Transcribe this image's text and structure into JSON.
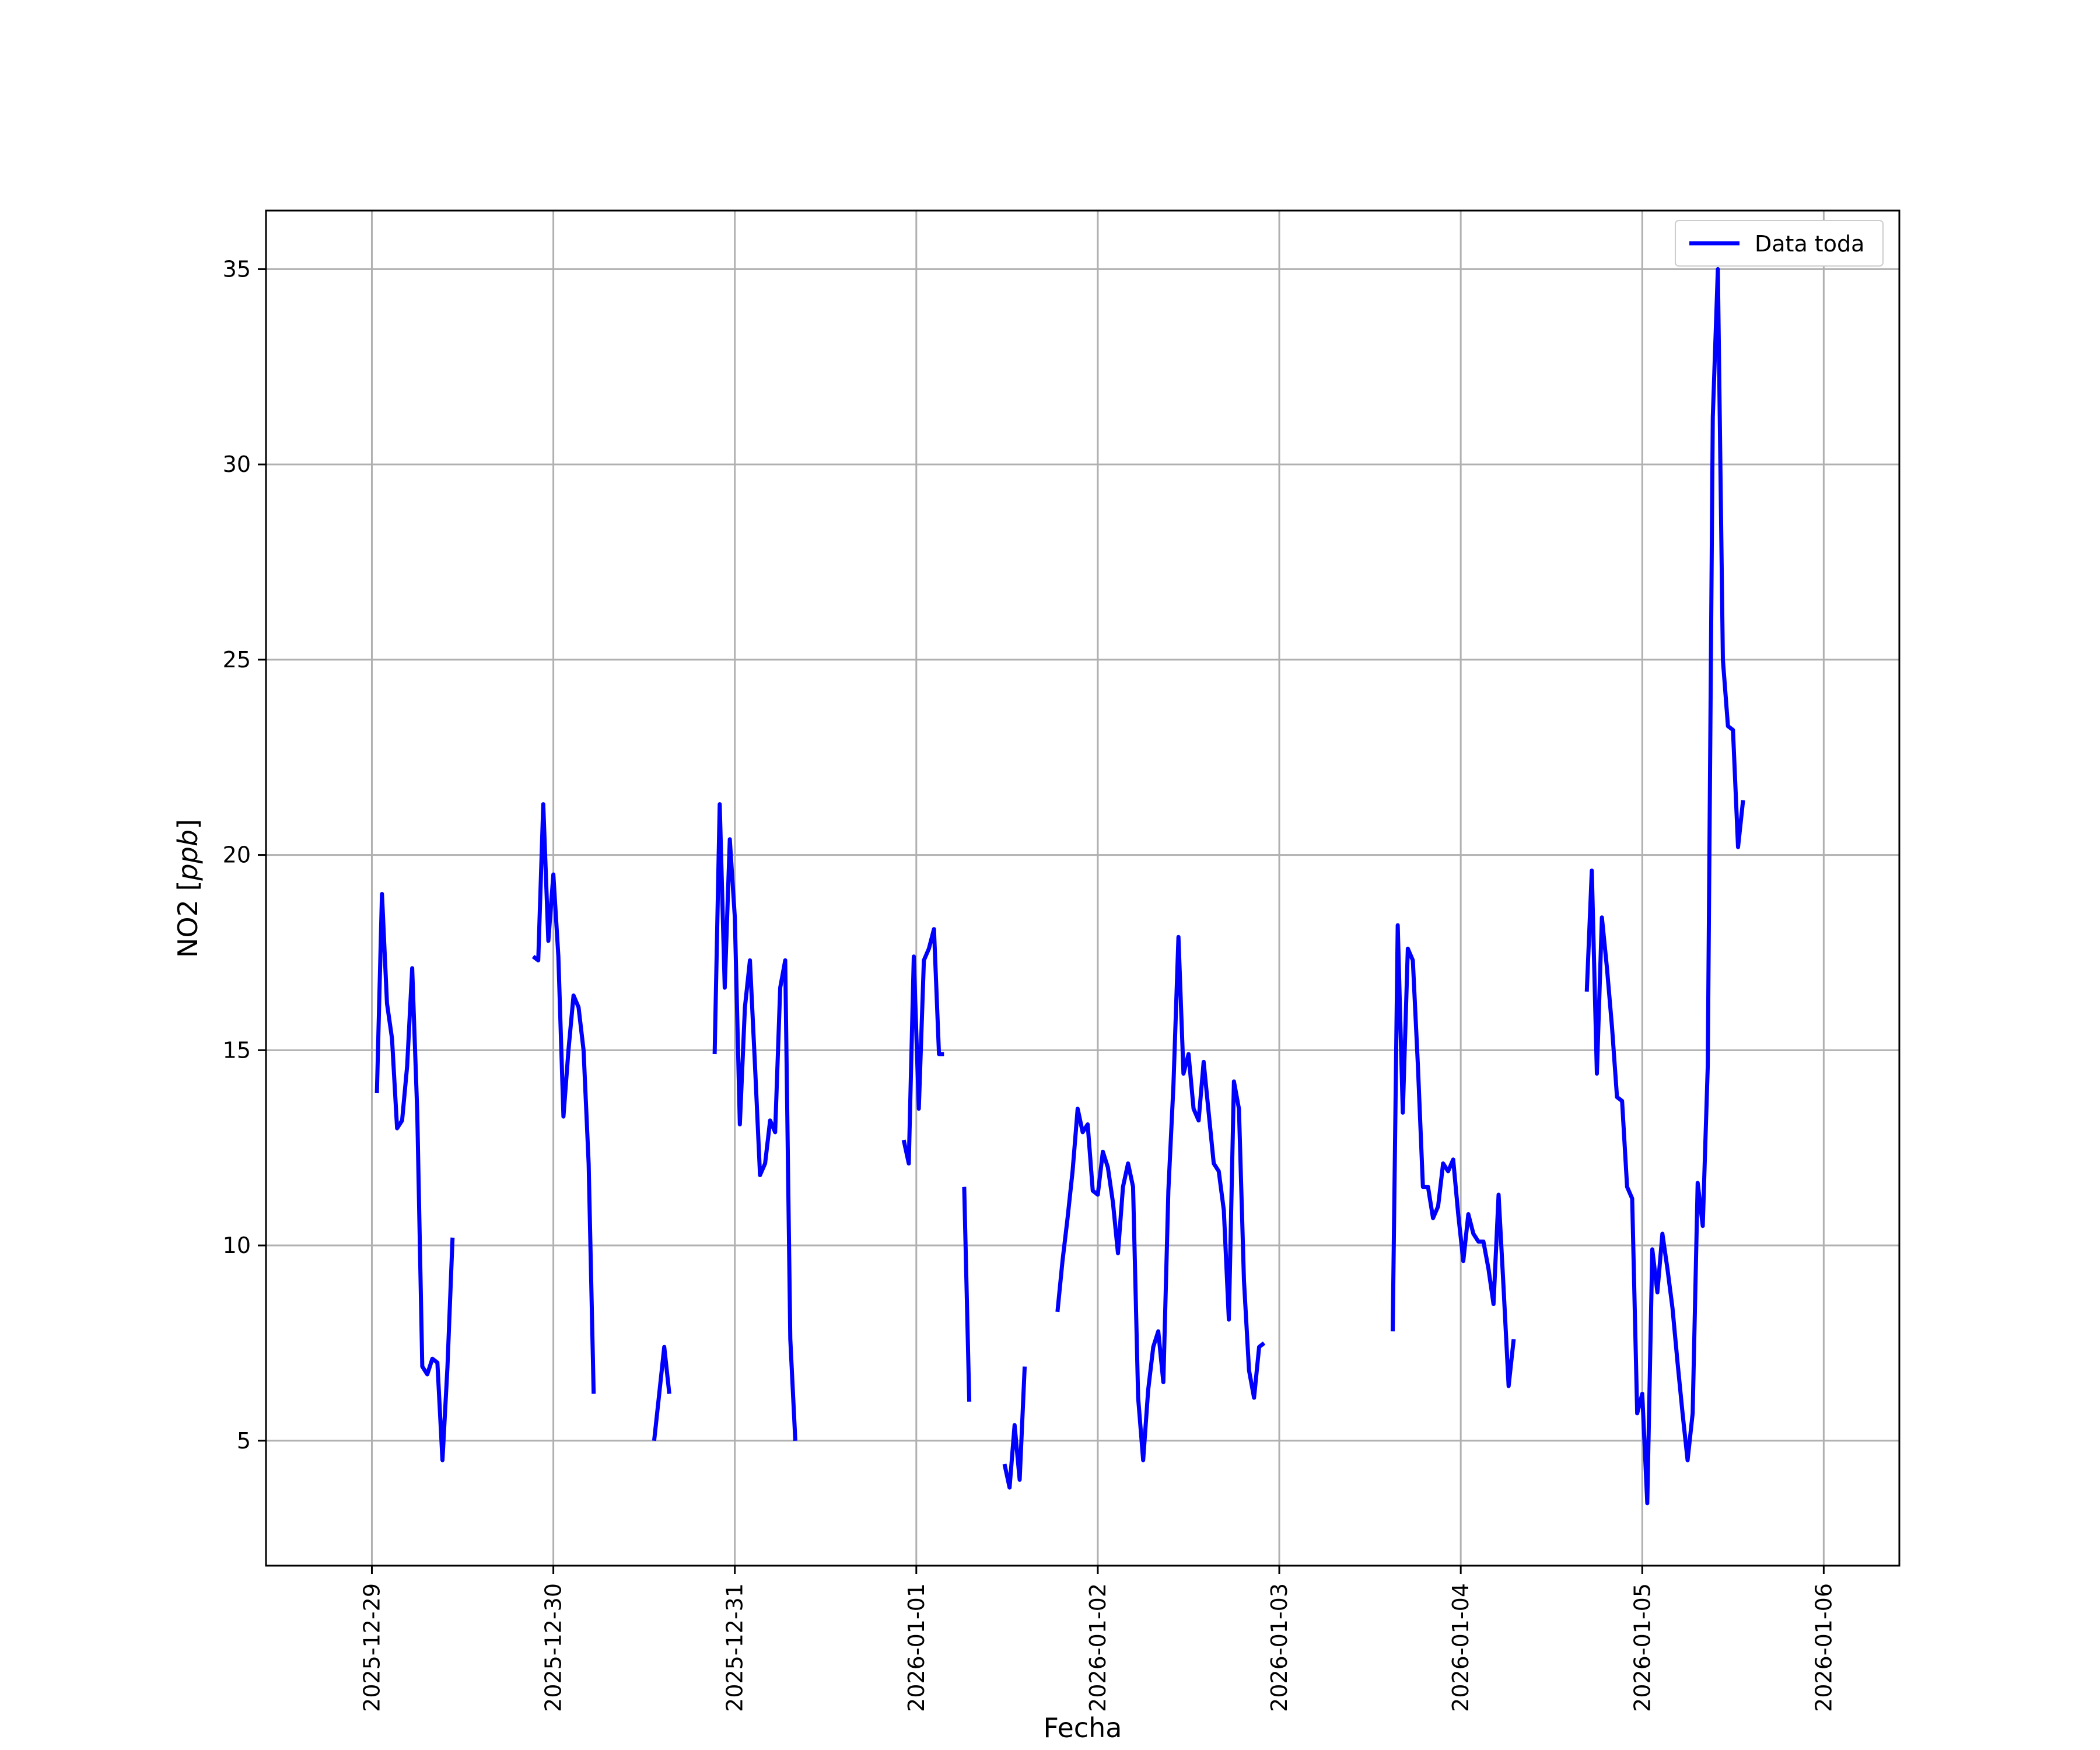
{
  "chart_data": {
    "type": "line",
    "title": "",
    "xlabel": "Fecha",
    "ylabel": "NO2 [ppb]",
    "ylabel_prefix": "NO2 [",
    "ylabel_unit": "ppb",
    "ylabel_suffix": "]",
    "x_axis_type": "datetime",
    "xlim": [
      "2025-12-28T10:00",
      "2026-01-06T10:00"
    ],
    "ylim": [
      1.8,
      36.5
    ],
    "x_ticks": [
      "2025-12-29",
      "2025-12-30",
      "2025-12-31",
      "2026-01-01",
      "2026-01-02",
      "2026-01-03",
      "2026-01-04",
      "2026-01-05",
      "2026-01-06"
    ],
    "y_ticks": [
      5,
      10,
      15,
      20,
      25,
      30,
      35
    ],
    "grid": true,
    "legend": {
      "position": "top-right",
      "entries": [
        "Data toda"
      ]
    },
    "series": [
      {
        "name": "Data toda",
        "color": "#0000ff",
        "segments": [
          [
            [
              "2025-12-29T00:40",
              13.9
            ],
            [
              "2025-12-29T01:20",
              19.0
            ],
            [
              "2025-12-29T02:00",
              16.2
            ],
            [
              "2025-12-29T02:40",
              15.3
            ],
            [
              "2025-12-29T03:20",
              13.0
            ],
            [
              "2025-12-29T04:00",
              13.2
            ],
            [
              "2025-12-29T04:40",
              14.6
            ],
            [
              "2025-12-29T05:20",
              17.1
            ],
            [
              "2025-12-29T06:00",
              13.4
            ],
            [
              "2025-12-29T06:40",
              6.9
            ],
            [
              "2025-12-29T07:20",
              6.7
            ],
            [
              "2025-12-29T08:00",
              7.1
            ],
            [
              "2025-12-29T08:40",
              7.0
            ],
            [
              "2025-12-29T09:20",
              4.5
            ],
            [
              "2025-12-29T10:00",
              6.9
            ],
            [
              "2025-12-29T10:40",
              10.2
            ]
          ],
          [
            [
              "2025-12-29T21:20",
              17.4
            ],
            [
              "2025-12-29T22:00",
              17.3
            ],
            [
              "2025-12-29T22:40",
              21.3
            ],
            [
              "2025-12-29T23:20",
              17.8
            ],
            [
              "2025-12-30T00:00",
              19.5
            ],
            [
              "2025-12-30T00:40",
              17.4
            ],
            [
              "2025-12-30T01:20",
              13.3
            ],
            [
              "2025-12-30T02:00",
              15.0
            ],
            [
              "2025-12-30T02:40",
              16.4
            ],
            [
              "2025-12-30T03:20",
              16.1
            ],
            [
              "2025-12-30T04:00",
              15.0
            ],
            [
              "2025-12-30T04:40",
              12.1
            ],
            [
              "2025-12-30T05:20",
              6.2
            ]
          ],
          [
            [
              "2025-12-30T13:20",
              5.0
            ],
            [
              "2025-12-30T14:00",
              6.2
            ],
            [
              "2025-12-30T14:40",
              7.4
            ],
            [
              "2025-12-30T15:20",
              6.2
            ]
          ],
          [
            [
              "2025-12-30T21:20",
              14.9
            ],
            [
              "2025-12-30T22:00",
              21.3
            ],
            [
              "2025-12-30T22:40",
              16.6
            ],
            [
              "2025-12-30T23:20",
              20.4
            ],
            [
              "2025-12-31T00:00",
              18.4
            ],
            [
              "2025-12-31T00:40",
              13.1
            ],
            [
              "2025-12-31T01:20",
              16.1
            ],
            [
              "2025-12-31T02:00",
              17.3
            ],
            [
              "2025-12-31T02:40",
              14.6
            ],
            [
              "2025-12-31T03:20",
              11.8
            ],
            [
              "2025-12-31T04:00",
              12.1
            ],
            [
              "2025-12-31T04:40",
              13.2
            ],
            [
              "2025-12-31T05:20",
              12.9
            ],
            [
              "2025-12-31T06:00",
              16.6
            ],
            [
              "2025-12-31T06:40",
              17.3
            ],
            [
              "2025-12-31T07:20",
              7.6
            ],
            [
              "2025-12-31T08:00",
              5.0
            ]
          ],
          [
            [
              "2025-12-31T22:20",
              12.7
            ],
            [
              "2025-12-31T23:00",
              12.1
            ],
            [
              "2025-12-31T23:40",
              17.4
            ],
            [
              "2026-01-01T00:20",
              13.5
            ],
            [
              "2026-01-01T01:00",
              17.3
            ],
            [
              "2026-01-01T01:40",
              17.6
            ],
            [
              "2026-01-01T02:20",
              18.1
            ],
            [
              "2026-01-01T03:00",
              14.9
            ],
            [
              "2026-01-01T03:40",
              14.9
            ]
          ],
          [
            [
              "2026-01-01T06:20",
              11.5
            ],
            [
              "2026-01-01T07:00",
              6.0
            ]
          ],
          [
            [
              "2026-01-01T11:40",
              4.4
            ],
            [
              "2026-01-01T12:20",
              3.8
            ],
            [
              "2026-01-01T13:00",
              5.4
            ],
            [
              "2026-01-01T13:40",
              4.0
            ],
            [
              "2026-01-01T14:20",
              6.9
            ]
          ],
          [
            [
              "2026-01-01T18:40",
              8.3
            ],
            [
              "2026-01-01T19:20",
              9.6
            ],
            [
              "2026-01-01T20:00",
              10.7
            ],
            [
              "2026-01-01T20:40",
              11.9
            ],
            [
              "2026-01-01T21:20",
              13.5
            ],
            [
              "2026-01-01T22:00",
              12.9
            ],
            [
              "2026-01-01T22:40",
              13.1
            ],
            [
              "2026-01-01T23:20",
              11.4
            ],
            [
              "2026-01-02T00:00",
              11.3
            ],
            [
              "2026-01-02T00:40",
              12.4
            ],
            [
              "2026-01-02T01:20",
              12.0
            ],
            [
              "2026-01-02T02:00",
              11.1
            ],
            [
              "2026-01-02T02:40",
              9.8
            ],
            [
              "2026-01-02T03:20",
              11.5
            ],
            [
              "2026-01-02T04:00",
              12.1
            ],
            [
              "2026-01-02T04:40",
              11.5
            ],
            [
              "2026-01-02T05:20",
              6.1
            ],
            [
              "2026-01-02T06:00",
              4.5
            ],
            [
              "2026-01-02T06:40",
              6.3
            ],
            [
              "2026-01-02T07:20",
              7.4
            ],
            [
              "2026-01-02T08:00",
              7.8
            ],
            [
              "2026-01-02T08:40",
              6.5
            ],
            [
              "2026-01-02T09:20",
              11.4
            ],
            [
              "2026-01-02T10:00",
              14.1
            ],
            [
              "2026-01-02T10:40",
              17.9
            ],
            [
              "2026-01-02T11:20",
              14.4
            ],
            [
              "2026-01-02T12:00",
              14.9
            ],
            [
              "2026-01-02T12:40",
              13.5
            ],
            [
              "2026-01-02T13:20",
              13.2
            ],
            [
              "2026-01-02T14:00",
              14.7
            ],
            [
              "2026-01-02T14:40",
              13.4
            ],
            [
              "2026-01-02T15:20",
              12.1
            ],
            [
              "2026-01-02T16:00",
              11.9
            ],
            [
              "2026-01-02T16:40",
              10.9
            ],
            [
              "2026-01-02T17:20",
              8.1
            ],
            [
              "2026-01-02T18:00",
              14.2
            ],
            [
              "2026-01-02T18:40",
              13.5
            ],
            [
              "2026-01-02T19:20",
              9.1
            ],
            [
              "2026-01-02T20:00",
              6.8
            ],
            [
              "2026-01-02T20:40",
              6.1
            ],
            [
              "2026-01-02T21:20",
              7.4
            ],
            [
              "2026-01-02T22:00",
              7.5
            ]
          ],
          [
            [
              "2026-01-03T15:00",
              7.8
            ],
            [
              "2026-01-03T15:40",
              18.2
            ],
            [
              "2026-01-03T16:20",
              13.4
            ],
            [
              "2026-01-03T17:00",
              17.6
            ],
            [
              "2026-01-03T17:40",
              17.3
            ],
            [
              "2026-01-03T18:20",
              14.6
            ],
            [
              "2026-01-03T19:00",
              11.5
            ],
            [
              "2026-01-03T19:40",
              11.5
            ],
            [
              "2026-01-03T20:20",
              10.7
            ],
            [
              "2026-01-03T21:00",
              11.0
            ],
            [
              "2026-01-03T21:40",
              12.1
            ],
            [
              "2026-01-03T22:20",
              11.9
            ],
            [
              "2026-01-03T23:00",
              12.2
            ],
            [
              "2026-01-03T23:40",
              10.8
            ],
            [
              "2026-01-04T00:20",
              9.6
            ],
            [
              "2026-01-04T01:00",
              10.8
            ],
            [
              "2026-01-04T01:40",
              10.3
            ],
            [
              "2026-01-04T02:20",
              10.1
            ],
            [
              "2026-01-04T03:00",
              10.1
            ],
            [
              "2026-01-04T03:40",
              9.4
            ],
            [
              "2026-01-04T04:20",
              8.5
            ],
            [
              "2026-01-04T05:00",
              11.3
            ],
            [
              "2026-01-04T05:40",
              8.9
            ],
            [
              "2026-01-04T06:20",
              6.4
            ],
            [
              "2026-01-04T07:00",
              7.6
            ]
          ],
          [
            [
              "2026-01-04T16:40",
              16.5
            ],
            [
              "2026-01-04T17:20",
              19.6
            ],
            [
              "2026-01-04T18:00",
              14.4
            ],
            [
              "2026-01-04T18:40",
              18.4
            ],
            [
              "2026-01-04T19:20",
              17.1
            ],
            [
              "2026-01-04T20:00",
              15.6
            ],
            [
              "2026-01-04T20:40",
              13.8
            ],
            [
              "2026-01-04T21:20",
              13.7
            ],
            [
              "2026-01-04T22:00",
              11.5
            ],
            [
              "2026-01-04T22:40",
              11.2
            ],
            [
              "2026-01-04T23:20",
              5.7
            ],
            [
              "2026-01-05T00:00",
              6.2
            ],
            [
              "2026-01-05T00:40",
              3.4
            ],
            [
              "2026-01-05T01:20",
              9.9
            ],
            [
              "2026-01-05T02:00",
              8.8
            ],
            [
              "2026-01-05T02:40",
              10.3
            ],
            [
              "2026-01-05T03:20",
              9.4
            ],
            [
              "2026-01-05T04:00",
              8.4
            ],
            [
              "2026-01-05T04:40",
              7.0
            ],
            [
              "2026-01-05T05:20",
              5.7
            ],
            [
              "2026-01-05T06:00",
              4.5
            ],
            [
              "2026-01-05T06:40",
              5.7
            ],
            [
              "2026-01-05T07:20",
              11.6
            ],
            [
              "2026-01-05T08:00",
              10.5
            ],
            [
              "2026-01-05T08:40",
              14.6
            ],
            [
              "2026-01-05T09:20",
              31.2
            ],
            [
              "2026-01-05T10:00",
              35.0
            ],
            [
              "2026-01-05T10:40",
              25.0
            ],
            [
              "2026-01-05T11:20",
              23.3
            ],
            [
              "2026-01-05T12:00",
              23.2
            ],
            [
              "2026-01-05T12:40",
              20.2
            ],
            [
              "2026-01-05T13:20",
              21.4
            ]
          ]
        ]
      }
    ]
  }
}
